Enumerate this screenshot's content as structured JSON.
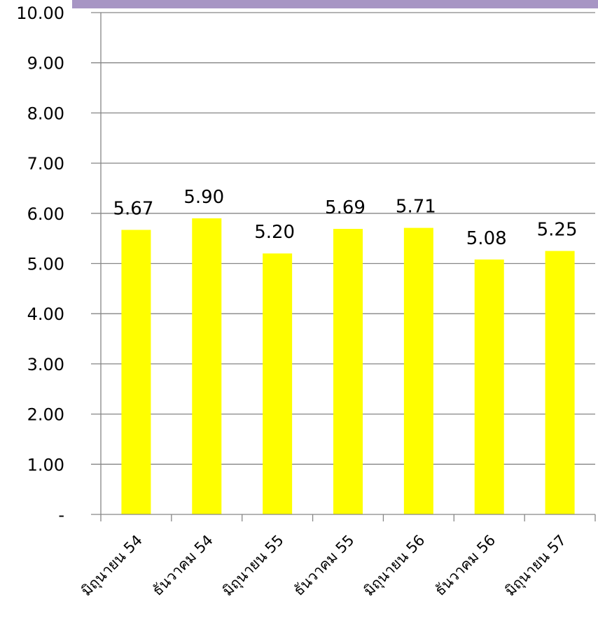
{
  "chart_data": {
    "type": "bar",
    "categories": [
      "มิถุนายน 54",
      "ธันวาคม 54",
      "มิถุนายน 55",
      "ธันวาคม 55",
      "มิถุนายน 56",
      "ธันวาคม 56",
      "มิถุนายน 57"
    ],
    "values": [
      5.67,
      5.9,
      5.2,
      5.69,
      5.71,
      5.08,
      5.25
    ],
    "value_labels": [
      "5.67",
      "5.90",
      "5.20",
      "5.69",
      "5.71",
      "5.08",
      "5.25"
    ],
    "ylim": [
      0,
      10
    ],
    "y_ticks": [
      0,
      1,
      2,
      3,
      4,
      5,
      6,
      7,
      8,
      9,
      10
    ],
    "y_tick_labels": [
      "-",
      "1.00",
      "2.00",
      "3.00",
      "4.00",
      "5.00",
      "6.00",
      "7.00",
      "8.00",
      "9.00",
      "10.00"
    ],
    "bar_color": "#ffff00",
    "grid": true,
    "legend": "none",
    "title": "",
    "xlabel": "",
    "ylabel": ""
  },
  "colors": {
    "banner": "#a795c4",
    "gridline": "#868686",
    "axis": "#868686"
  }
}
